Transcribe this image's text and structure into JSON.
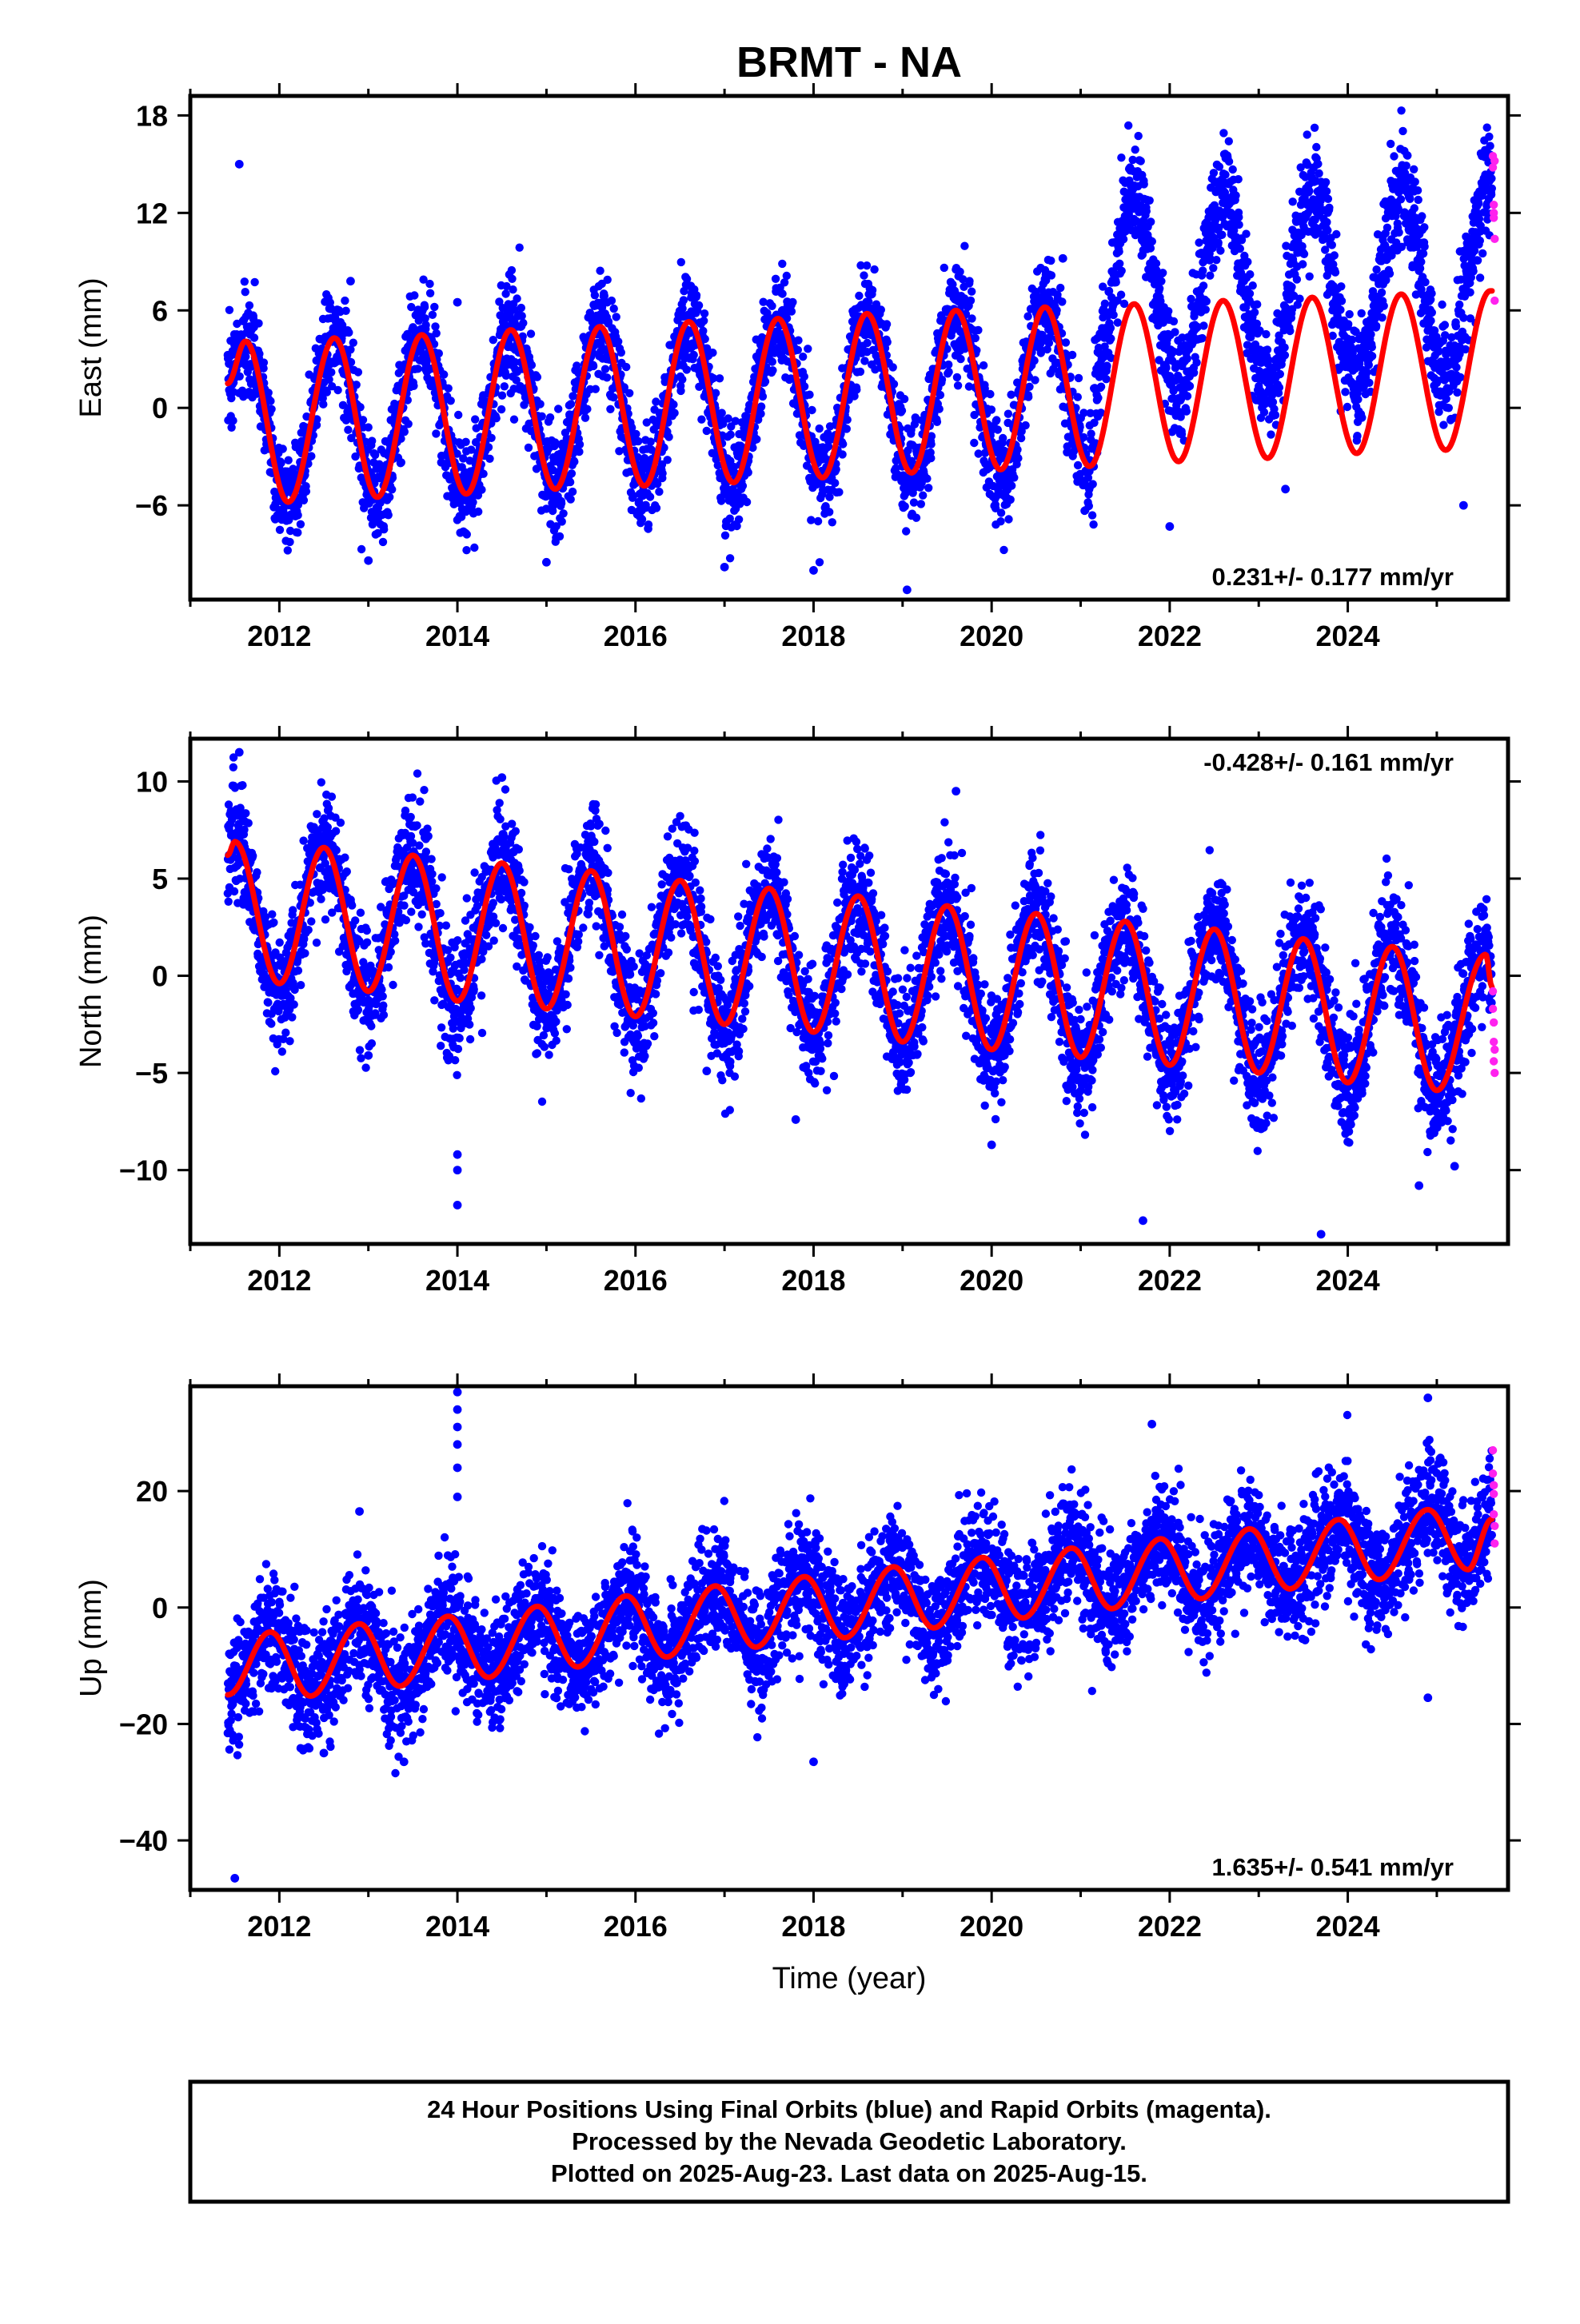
{
  "title": "BRMT - NA",
  "xlabel": "Time (year)",
  "colors": {
    "final_orbits": "#0000ff",
    "rapid_orbits": "#ff22ee",
    "model": "#ff0000",
    "frame": "#000000"
  },
  "chart_data": [
    {
      "type": "scatter",
      "component": "east",
      "ylabel": "East (mm)",
      "rate_text": "0.231+/- 0.177 mm/yr",
      "rate_position": "bottom-right",
      "xlim": [
        2011.0,
        2025.8
      ],
      "ylim": [
        -11.8,
        19.2
      ],
      "xticks": [
        2012,
        2014,
        2016,
        2018,
        2020,
        2022,
        2024
      ],
      "yticks": [
        18,
        12,
        6,
        0,
        -6
      ],
      "data_start": 2011.42,
      "data_end": 2025.62,
      "model": {
        "rate": 0.231,
        "offset_at_start": -0.9,
        "annual_amplitude": 5.0,
        "peak_phase_year_fraction": 0.58,
        "points": [
          {
            "x": 2011.42,
            "y": 1.5
          },
          {
            "x": 2011.62,
            "y": 4.1
          },
          {
            "x": 2012.1,
            "y": -5.8
          },
          {
            "x": 2012.62,
            "y": 4.3
          },
          {
            "x": 2013.1,
            "y": -5.5
          },
          {
            "x": 2013.6,
            "y": 4.5
          },
          {
            "x": 2014.1,
            "y": -5.3
          },
          {
            "x": 2014.6,
            "y": 4.8
          },
          {
            "x": 2015.1,
            "y": -5.0
          },
          {
            "x": 2015.6,
            "y": 5.0
          },
          {
            "x": 2016.1,
            "y": -4.8
          },
          {
            "x": 2016.6,
            "y": 5.3
          },
          {
            "x": 2017.1,
            "y": -4.6
          },
          {
            "x": 2017.6,
            "y": 5.5
          },
          {
            "x": 2018.1,
            "y": -4.3
          },
          {
            "x": 2018.6,
            "y": 5.8
          },
          {
            "x": 2019.1,
            "y": -4.0
          },
          {
            "x": 2019.6,
            "y": 6.0
          },
          {
            "x": 2020.1,
            "y": -3.8
          },
          {
            "x": 2020.6,
            "y": 6.2
          },
          {
            "x": 2021.1,
            "y": -3.6
          },
          {
            "x": 2021.6,
            "y": 6.4
          },
          {
            "x": 2022.1,
            "y": -3.3
          },
          {
            "x": 2022.6,
            "y": 6.6
          },
          {
            "x": 2023.1,
            "y": -3.1
          },
          {
            "x": 2023.6,
            "y": 6.8
          },
          {
            "x": 2024.1,
            "y": -2.8
          },
          {
            "x": 2024.6,
            "y": 7.0
          },
          {
            "x": 2025.1,
            "y": -2.6
          },
          {
            "x": 2025.6,
            "y": 7.2
          }
        ]
      },
      "scatter_envelope": {
        "comment_free": true,
        "segments": [
          {
            "from": 2011.42,
            "to": 2021.15,
            "offset": 0.0,
            "amplitude_scale": 1.0,
            "spread": 1.6
          },
          {
            "from": 2021.15,
            "to": 2025.62,
            "offset": 5.5,
            "amplitude_scale": 1.2,
            "spread": 1.7
          }
        ]
      },
      "outliers": [
        {
          "x": 2011.55,
          "y": 15.0
        },
        {
          "x": 2014.0,
          "y": 6.5
        },
        {
          "x": 2015.0,
          "y": -9.5
        },
        {
          "x": 2017.0,
          "y": -9.8
        },
        {
          "x": 2018.0,
          "y": -10.0
        },
        {
          "x": 2019.05,
          "y": -11.2
        },
        {
          "x": 2020.8,
          "y": 9.2
        },
        {
          "x": 2022.0,
          "y": -7.3
        },
        {
          "x": 2023.3,
          "y": -5.0
        },
        {
          "x": 2025.3,
          "y": -6.0
        },
        {
          "x": 2012.8,
          "y": 7.8
        },
        {
          "x": 2013.0,
          "y": -9.4
        }
      ],
      "rapid_points": [
        {
          "x": 2025.63,
          "y": 15.5
        },
        {
          "x": 2025.63,
          "y": 14.8
        },
        {
          "x": 2025.64,
          "y": 12.5
        },
        {
          "x": 2025.64,
          "y": 11.7
        },
        {
          "x": 2025.65,
          "y": 10.4
        },
        {
          "x": 2025.65,
          "y": 6.6
        },
        {
          "x": 2025.64,
          "y": 12.0
        },
        {
          "x": 2025.65,
          "y": 15.2
        }
      ]
    },
    {
      "type": "scatter",
      "component": "north",
      "ylabel": "North (mm)",
      "rate_text": "-0.428+/- 0.161 mm/yr",
      "rate_position": "top-right",
      "xlim": [
        2011.0,
        2025.8
      ],
      "ylim": [
        -13.8,
        12.2
      ],
      "xticks": [
        2012,
        2014,
        2016,
        2018,
        2020,
        2022,
        2024
      ],
      "yticks": [
        10,
        5,
        0,
        -5,
        -10
      ],
      "data_start": 2011.42,
      "data_end": 2025.62,
      "model": {
        "rate": -0.428,
        "offset_at_start": 3.2,
        "annual_amplitude": 3.5,
        "peak_phase_year_fraction": 0.48,
        "points": [
          {
            "x": 2011.42,
            "y": 6.2
          },
          {
            "x": 2011.5,
            "y": 6.9
          },
          {
            "x": 2012.0,
            "y": -0.4
          },
          {
            "x": 2012.5,
            "y": 6.6
          },
          {
            "x": 2013.0,
            "y": -0.8
          },
          {
            "x": 2013.5,
            "y": 6.2
          },
          {
            "x": 2014.0,
            "y": -1.3
          },
          {
            "x": 2014.5,
            "y": 5.8
          },
          {
            "x": 2015.0,
            "y": -1.7
          },
          {
            "x": 2015.5,
            "y": 5.4
          },
          {
            "x": 2016.0,
            "y": -2.1
          },
          {
            "x": 2016.5,
            "y": 4.9
          },
          {
            "x": 2017.0,
            "y": -2.5
          },
          {
            "x": 2017.5,
            "y": 4.5
          },
          {
            "x": 2018.0,
            "y": -2.9
          },
          {
            "x": 2018.5,
            "y": 4.1
          },
          {
            "x": 2019.0,
            "y": -3.4
          },
          {
            "x": 2019.5,
            "y": 3.6
          },
          {
            "x": 2020.0,
            "y": -3.8
          },
          {
            "x": 2020.5,
            "y": 3.2
          },
          {
            "x": 2021.0,
            "y": -4.2
          },
          {
            "x": 2021.5,
            "y": 2.8
          },
          {
            "x": 2022.0,
            "y": -4.6
          },
          {
            "x": 2022.5,
            "y": 2.4
          },
          {
            "x": 2023.0,
            "y": -5.0
          },
          {
            "x": 2023.5,
            "y": 1.9
          },
          {
            "x": 2024.0,
            "y": -5.5
          },
          {
            "x": 2024.5,
            "y": 1.5
          },
          {
            "x": 2025.0,
            "y": -5.9
          },
          {
            "x": 2025.55,
            "y": 1.1
          },
          {
            "x": 2025.62,
            "y": -0.6
          }
        ]
      },
      "scatter_envelope": {
        "comment_free": true,
        "segments": [
          {
            "from": 2011.42,
            "to": 2025.62,
            "offset": 0.0,
            "amplitude_scale": 1.05,
            "spread": 1.5
          }
        ]
      },
      "outliers": [
        {
          "x": 2011.55,
          "y": 11.5
        },
        {
          "x": 2014.0,
          "y": -11.8
        },
        {
          "x": 2014.0,
          "y": -10.0
        },
        {
          "x": 2014.0,
          "y": -9.2
        },
        {
          "x": 2014.5,
          "y": 10.2
        },
        {
          "x": 2019.6,
          "y": 9.5
        },
        {
          "x": 2021.7,
          "y": -12.6
        },
        {
          "x": 2023.7,
          "y": -13.3
        },
        {
          "x": 2017.8,
          "y": -7.4
        },
        {
          "x": 2020.0,
          "y": -8.7
        },
        {
          "x": 2024.8,
          "y": -10.8
        },
        {
          "x": 2025.2,
          "y": -9.8
        },
        {
          "x": 2013.0,
          "y": -4.1
        },
        {
          "x": 2016.8,
          "y": -4.9
        }
      ],
      "rapid_points": [
        {
          "x": 2025.63,
          "y": -0.8
        },
        {
          "x": 2025.63,
          "y": -1.7
        },
        {
          "x": 2025.64,
          "y": -2.4
        },
        {
          "x": 2025.64,
          "y": -3.4
        },
        {
          "x": 2025.65,
          "y": -3.8
        },
        {
          "x": 2025.65,
          "y": -5.0
        },
        {
          "x": 2025.64,
          "y": -4.4
        }
      ]
    },
    {
      "type": "scatter",
      "component": "up",
      "ylabel": "Up (mm)",
      "rate_text": "1.635+/- 0.541 mm/yr",
      "rate_position": "bottom-right",
      "xlim": [
        2011.0,
        2025.8
      ],
      "ylim": [
        -48.5,
        38.0
      ],
      "xticks": [
        2012,
        2014,
        2016,
        2018,
        2020,
        2022,
        2024
      ],
      "yticks": [
        20,
        0,
        -20,
        -40
      ],
      "data_start": 2011.42,
      "data_end": 2025.62,
      "model": {
        "rate": 1.635,
        "offset_at_start": -10.0,
        "annual_amplitude": 5.5,
        "peak_phase_year_fraction": 0.9,
        "points": [
          {
            "x": 2011.42,
            "y": -15.0
          },
          {
            "x": 2011.9,
            "y": -4.2
          },
          {
            "x": 2012.35,
            "y": -15.2
          },
          {
            "x": 2012.9,
            "y": -2.8
          },
          {
            "x": 2013.35,
            "y": -13.5
          },
          {
            "x": 2013.9,
            "y": -1.5
          },
          {
            "x": 2014.35,
            "y": -12.0
          },
          {
            "x": 2014.9,
            "y": 0.2
          },
          {
            "x": 2015.35,
            "y": -10.2
          },
          {
            "x": 2015.9,
            "y": 2.0
          },
          {
            "x": 2016.35,
            "y": -8.5
          },
          {
            "x": 2016.9,
            "y": 3.7
          },
          {
            "x": 2017.35,
            "y": -6.8
          },
          {
            "x": 2017.9,
            "y": 5.3
          },
          {
            "x": 2018.35,
            "y": -5.2
          },
          {
            "x": 2018.9,
            "y": 7.0
          },
          {
            "x": 2019.35,
            "y": -3.5
          },
          {
            "x": 2019.9,
            "y": 8.6
          },
          {
            "x": 2020.35,
            "y": -1.8
          },
          {
            "x": 2020.9,
            "y": 10.2
          },
          {
            "x": 2021.35,
            "y": -0.2
          },
          {
            "x": 2021.9,
            "y": 11.8
          },
          {
            "x": 2022.35,
            "y": 1.5
          },
          {
            "x": 2022.9,
            "y": 13.5
          },
          {
            "x": 2023.35,
            "y": 3.2
          },
          {
            "x": 2023.9,
            "y": 15.1
          },
          {
            "x": 2024.35,
            "y": 4.8
          },
          {
            "x": 2024.9,
            "y": 16.8
          },
          {
            "x": 2025.35,
            "y": 6.5
          },
          {
            "x": 2025.62,
            "y": 15.2
          }
        ]
      },
      "scatter_envelope": {
        "comment_free": true,
        "segments": [
          {
            "from": 2011.42,
            "to": 2025.62,
            "offset": 0.0,
            "amplitude_scale": 1.0,
            "spread": 5.0
          }
        ]
      },
      "outliers": [
        {
          "x": 2011.5,
          "y": -46.5
        },
        {
          "x": 2014.0,
          "y": 37.0
        },
        {
          "x": 2014.0,
          "y": 34.0
        },
        {
          "x": 2014.0,
          "y": 31.0
        },
        {
          "x": 2014.0,
          "y": 28.0
        },
        {
          "x": 2014.0,
          "y": 24.0
        },
        {
          "x": 2014.0,
          "y": 19.0
        },
        {
          "x": 2018.0,
          "y": -26.5
        },
        {
          "x": 2013.4,
          "y": -26.5
        },
        {
          "x": 2012.5,
          "y": -25.0
        },
        {
          "x": 2021.8,
          "y": 31.5
        },
        {
          "x": 2024.9,
          "y": -15.5
        },
        {
          "x": 2024.9,
          "y": 36.0
        },
        {
          "x": 2012.9,
          "y": 16.5
        }
      ],
      "rapid_points": [
        {
          "x": 2025.63,
          "y": 27.0
        },
        {
          "x": 2025.63,
          "y": 23.0
        },
        {
          "x": 2025.64,
          "y": 19.5
        },
        {
          "x": 2025.64,
          "y": 16.0
        },
        {
          "x": 2025.65,
          "y": 14.0
        },
        {
          "x": 2025.65,
          "y": 11.0
        },
        {
          "x": 2025.64,
          "y": 21.0
        }
      ]
    }
  ],
  "footer": {
    "line1": "24 Hour Positions Using Final Orbits (blue) and Rapid Orbits (magenta).",
    "line2": "Processed by the Nevada Geodetic Laboratory.",
    "line3": "Plotted on 2025-Aug-23. Last data on 2025-Aug-15."
  }
}
